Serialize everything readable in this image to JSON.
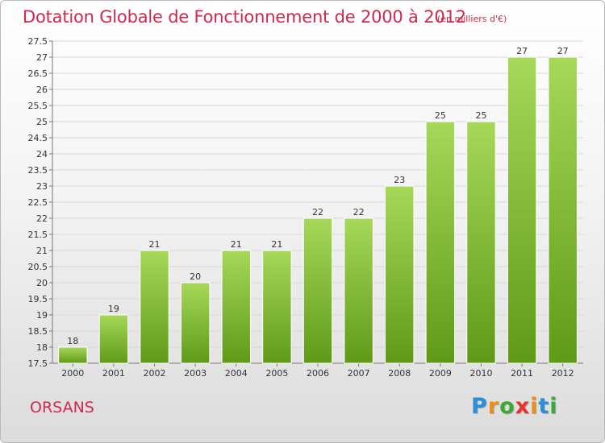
{
  "title": "Dotation Globale de Fonctionnement de 2000 à 2012",
  "subtitle": "(en milliers d'€)",
  "commune": "ORSANS",
  "logo": {
    "letters": [
      "P",
      "r",
      "o",
      "x",
      "i",
      "t",
      "i"
    ],
    "colors": [
      "#2b8fd8",
      "#f08c1a",
      "#3aaa35",
      "#e8322b",
      "#f08c1a",
      "#2b8fd8",
      "#3aaa35"
    ]
  },
  "colors": {
    "bar_light": "#a6d85a",
    "bar_dark": "#5f9a17",
    "text": "#d0284e"
  },
  "chart_data": {
    "type": "bar",
    "title": "Dotation Globale de Fonctionnement de 2000 à 2012",
    "subtitle": "(en milliers d'€)",
    "xlabel": "",
    "ylabel": "",
    "categories": [
      "2000",
      "2001",
      "2002",
      "2003",
      "2004",
      "2005",
      "2006",
      "2007",
      "2008",
      "2009",
      "2010",
      "2011",
      "2012"
    ],
    "values": [
      18,
      19,
      21,
      20,
      21,
      21,
      22,
      22,
      23,
      25,
      25,
      27,
      27
    ],
    "ylim": [
      17.5,
      27.5
    ],
    "yticks": [
      "17.5",
      "18",
      "18.5",
      "19",
      "19.5",
      "20",
      "20.5",
      "21",
      "21.5",
      "22",
      "22.5",
      "23",
      "23.5",
      "24",
      "24.5",
      "25",
      "25.5",
      "26",
      "26.5",
      "27",
      "27.5"
    ],
    "grid": true,
    "legend": "none"
  }
}
